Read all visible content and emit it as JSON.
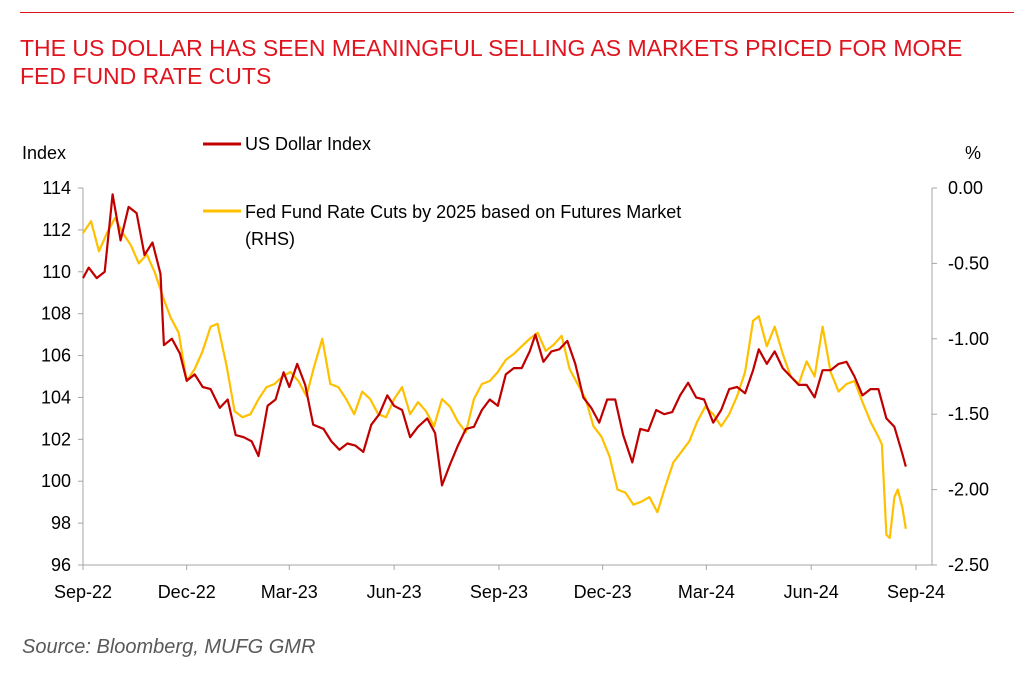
{
  "title": "THE US DOLLAR HAS SEEN MEANINGFUL SELLING AS MARKETS PRICED FOR MORE FED FUND RATE CUTS",
  "source": "Source: Bloomberg, MUFG GMR",
  "colors": {
    "accent": "#e0141e",
    "usd": "#c00000",
    "fed": "#ffc000",
    "axis": "#a6a6a6"
  },
  "chart_data": {
    "type": "line",
    "ylabel": "Index",
    "y2label": "%",
    "ylim": [
      96,
      114
    ],
    "y2lim": [
      -2.5,
      0
    ],
    "x_range": [
      "2022-09-01",
      "2024-09-15"
    ],
    "x_ticks": [
      {
        "date": "2022-09-01",
        "label": "Sep-22"
      },
      {
        "date": "2022-12-01",
        "label": "Dec-22"
      },
      {
        "date": "2023-03-01",
        "label": "Mar-23"
      },
      {
        "date": "2023-06-01",
        "label": "Jun-23"
      },
      {
        "date": "2023-09-01",
        "label": "Sep-23"
      },
      {
        "date": "2023-12-01",
        "label": "Dec-23"
      },
      {
        "date": "2024-03-01",
        "label": "Mar-24"
      },
      {
        "date": "2024-06-01",
        "label": "Jun-24"
      },
      {
        "date": "2024-09-01",
        "label": "Sep-24"
      }
    ],
    "y_ticks": [
      "96",
      "98",
      "100",
      "102",
      "104",
      "106",
      "108",
      "110",
      "112",
      "114"
    ],
    "y2_ticks": [
      "0.00",
      "-0.50",
      "-1.00",
      "-1.50",
      "-2.00",
      "-2.50"
    ],
    "grid": false,
    "legend_position": "top-left",
    "series": [
      {
        "name": "US Dollar Index",
        "axis": "left",
        "color": "#c00000",
        "points": [
          [
            "2022-09-01",
            109.7
          ],
          [
            "2022-09-06",
            110.2
          ],
          [
            "2022-09-13",
            109.7
          ],
          [
            "2022-09-20",
            110.0
          ],
          [
            "2022-09-27",
            113.7
          ],
          [
            "2022-10-04",
            111.5
          ],
          [
            "2022-10-11",
            113.1
          ],
          [
            "2022-10-18",
            112.8
          ],
          [
            "2022-10-25",
            110.8
          ],
          [
            "2022-11-01",
            111.4
          ],
          [
            "2022-11-08",
            109.9
          ],
          [
            "2022-11-11",
            106.5
          ],
          [
            "2022-11-18",
            106.8
          ],
          [
            "2022-11-25",
            106.1
          ],
          [
            "2022-12-01",
            104.8
          ],
          [
            "2022-12-08",
            105.1
          ],
          [
            "2022-12-15",
            104.5
          ],
          [
            "2022-12-22",
            104.4
          ],
          [
            "2022-12-30",
            103.5
          ],
          [
            "2023-01-06",
            103.9
          ],
          [
            "2023-01-13",
            102.2
          ],
          [
            "2023-01-20",
            102.1
          ],
          [
            "2023-01-27",
            101.9
          ],
          [
            "2023-02-02",
            101.2
          ],
          [
            "2023-02-10",
            103.6
          ],
          [
            "2023-02-17",
            103.9
          ],
          [
            "2023-02-24",
            105.2
          ],
          [
            "2023-03-01",
            104.5
          ],
          [
            "2023-03-08",
            105.6
          ],
          [
            "2023-03-15",
            104.6
          ],
          [
            "2023-03-22",
            102.7
          ],
          [
            "2023-03-31",
            102.5
          ],
          [
            "2023-04-07",
            101.9
          ],
          [
            "2023-04-14",
            101.5
          ],
          [
            "2023-04-21",
            101.8
          ],
          [
            "2023-04-28",
            101.7
          ],
          [
            "2023-05-05",
            101.4
          ],
          [
            "2023-05-12",
            102.7
          ],
          [
            "2023-05-19",
            103.2
          ],
          [
            "2023-05-26",
            104.1
          ],
          [
            "2023-06-01",
            103.6
          ],
          [
            "2023-06-08",
            103.4
          ],
          [
            "2023-06-15",
            102.1
          ],
          [
            "2023-06-22",
            102.6
          ],
          [
            "2023-06-30",
            103.0
          ],
          [
            "2023-07-07",
            102.3
          ],
          [
            "2023-07-13",
            99.8
          ],
          [
            "2023-07-20",
            100.8
          ],
          [
            "2023-07-27",
            101.7
          ],
          [
            "2023-08-03",
            102.5
          ],
          [
            "2023-08-10",
            102.6
          ],
          [
            "2023-08-17",
            103.4
          ],
          [
            "2023-08-24",
            103.9
          ],
          [
            "2023-08-31",
            103.6
          ],
          [
            "2023-09-07",
            105.1
          ],
          [
            "2023-09-14",
            105.4
          ],
          [
            "2023-09-21",
            105.4
          ],
          [
            "2023-09-28",
            106.2
          ],
          [
            "2023-10-03",
            107.0
          ],
          [
            "2023-10-10",
            105.7
          ],
          [
            "2023-10-17",
            106.2
          ],
          [
            "2023-10-24",
            106.3
          ],
          [
            "2023-10-31",
            106.7
          ],
          [
            "2023-11-07",
            105.6
          ],
          [
            "2023-11-14",
            104.0
          ],
          [
            "2023-11-21",
            103.5
          ],
          [
            "2023-11-28",
            102.8
          ],
          [
            "2023-12-05",
            103.9
          ],
          [
            "2023-12-12",
            103.9
          ],
          [
            "2023-12-19",
            102.2
          ],
          [
            "2023-12-27",
            100.9
          ],
          [
            "2024-01-03",
            102.5
          ],
          [
            "2024-01-10",
            102.4
          ],
          [
            "2024-01-17",
            103.4
          ],
          [
            "2024-01-24",
            103.2
          ],
          [
            "2024-01-31",
            103.3
          ],
          [
            "2024-02-07",
            104.1
          ],
          [
            "2024-02-14",
            104.7
          ],
          [
            "2024-02-21",
            104.0
          ],
          [
            "2024-02-28",
            103.9
          ],
          [
            "2024-03-07",
            102.8
          ],
          [
            "2024-03-14",
            103.4
          ],
          [
            "2024-03-21",
            104.4
          ],
          [
            "2024-03-28",
            104.5
          ],
          [
            "2024-04-04",
            104.2
          ],
          [
            "2024-04-11",
            105.3
          ],
          [
            "2024-04-16",
            106.3
          ],
          [
            "2024-04-23",
            105.6
          ],
          [
            "2024-04-30",
            106.2
          ],
          [
            "2024-05-07",
            105.4
          ],
          [
            "2024-05-14",
            105.0
          ],
          [
            "2024-05-21",
            104.6
          ],
          [
            "2024-05-28",
            104.6
          ],
          [
            "2024-06-04",
            104.0
          ],
          [
            "2024-06-11",
            105.3
          ],
          [
            "2024-06-18",
            105.3
          ],
          [
            "2024-06-25",
            105.6
          ],
          [
            "2024-07-02",
            105.7
          ],
          [
            "2024-07-09",
            105.0
          ],
          [
            "2024-07-16",
            104.1
          ],
          [
            "2024-07-23",
            104.4
          ],
          [
            "2024-07-30",
            104.4
          ],
          [
            "2024-08-06",
            103.0
          ],
          [
            "2024-08-13",
            102.6
          ],
          [
            "2024-08-20",
            101.3
          ],
          [
            "2024-08-23",
            100.7
          ]
        ]
      },
      {
        "name": "Fed Fund Rate Cuts by 2025 based on Futures Market (RHS)",
        "axis": "right",
        "color": "#ffc000",
        "points": [
          [
            "2022-09-01",
            -0.3
          ],
          [
            "2022-09-08",
            -0.22
          ],
          [
            "2022-09-15",
            -0.42
          ],
          [
            "2022-09-22",
            -0.3
          ],
          [
            "2022-09-29",
            -0.2
          ],
          [
            "2022-10-06",
            -0.3
          ],
          [
            "2022-10-13",
            -0.38
          ],
          [
            "2022-10-20",
            -0.5
          ],
          [
            "2022-10-27",
            -0.44
          ],
          [
            "2022-11-03",
            -0.56
          ],
          [
            "2022-11-10",
            -0.72
          ],
          [
            "2022-11-17",
            -0.86
          ],
          [
            "2022-11-24",
            -0.96
          ],
          [
            "2022-12-01",
            -1.28
          ],
          [
            "2022-12-08",
            -1.2
          ],
          [
            "2022-12-15",
            -1.08
          ],
          [
            "2022-12-22",
            -0.92
          ],
          [
            "2022-12-28",
            -0.9
          ],
          [
            "2023-01-05",
            -1.18
          ],
          [
            "2023-01-12",
            -1.48
          ],
          [
            "2023-01-19",
            -1.52
          ],
          [
            "2023-01-26",
            -1.5
          ],
          [
            "2023-02-02",
            -1.4
          ],
          [
            "2023-02-09",
            -1.32
          ],
          [
            "2023-02-16",
            -1.3
          ],
          [
            "2023-02-23",
            -1.25
          ],
          [
            "2023-03-02",
            -1.22
          ],
          [
            "2023-03-09",
            -1.28
          ],
          [
            "2023-03-16",
            -1.38
          ],
          [
            "2023-03-23",
            -1.18
          ],
          [
            "2023-03-30",
            -1.0
          ],
          [
            "2023-04-06",
            -1.3
          ],
          [
            "2023-04-13",
            -1.32
          ],
          [
            "2023-04-20",
            -1.4
          ],
          [
            "2023-04-27",
            -1.5
          ],
          [
            "2023-05-04",
            -1.35
          ],
          [
            "2023-05-11",
            -1.4
          ],
          [
            "2023-05-18",
            -1.5
          ],
          [
            "2023-05-25",
            -1.52
          ],
          [
            "2023-06-01",
            -1.4
          ],
          [
            "2023-06-08",
            -1.32
          ],
          [
            "2023-06-15",
            -1.5
          ],
          [
            "2023-06-22",
            -1.42
          ],
          [
            "2023-06-29",
            -1.48
          ],
          [
            "2023-07-06",
            -1.58
          ],
          [
            "2023-07-13",
            -1.4
          ],
          [
            "2023-07-20",
            -1.45
          ],
          [
            "2023-07-27",
            -1.55
          ],
          [
            "2023-08-03",
            -1.62
          ],
          [
            "2023-08-10",
            -1.4
          ],
          [
            "2023-08-17",
            -1.3
          ],
          [
            "2023-08-24",
            -1.28
          ],
          [
            "2023-08-31",
            -1.22
          ],
          [
            "2023-09-07",
            -1.14
          ],
          [
            "2023-09-14",
            -1.1
          ],
          [
            "2023-09-21",
            -1.05
          ],
          [
            "2023-09-28",
            -1.0
          ],
          [
            "2023-10-05",
            -0.96
          ],
          [
            "2023-10-12",
            -1.08
          ],
          [
            "2023-10-19",
            -1.04
          ],
          [
            "2023-10-26",
            -0.98
          ],
          [
            "2023-11-02",
            -1.2
          ],
          [
            "2023-11-09",
            -1.3
          ],
          [
            "2023-11-16",
            -1.4
          ],
          [
            "2023-11-23",
            -1.58
          ],
          [
            "2023-11-30",
            -1.65
          ],
          [
            "2023-12-07",
            -1.78
          ],
          [
            "2023-12-14",
            -2.0
          ],
          [
            "2023-12-21",
            -2.02
          ],
          [
            "2023-12-28",
            -2.1
          ],
          [
            "2024-01-04",
            -2.08
          ],
          [
            "2024-01-11",
            -2.05
          ],
          [
            "2024-01-18",
            -2.15
          ],
          [
            "2024-01-25",
            -1.98
          ],
          [
            "2024-02-01",
            -1.82
          ],
          [
            "2024-02-08",
            -1.75
          ],
          [
            "2024-02-15",
            -1.68
          ],
          [
            "2024-02-22",
            -1.55
          ],
          [
            "2024-02-29",
            -1.45
          ],
          [
            "2024-03-07",
            -1.5
          ],
          [
            "2024-03-14",
            -1.58
          ],
          [
            "2024-03-21",
            -1.5
          ],
          [
            "2024-03-28",
            -1.38
          ],
          [
            "2024-04-04",
            -1.22
          ],
          [
            "2024-04-11",
            -0.88
          ],
          [
            "2024-04-16",
            -0.85
          ],
          [
            "2024-04-23",
            -1.05
          ],
          [
            "2024-04-30",
            -0.92
          ],
          [
            "2024-05-07",
            -1.1
          ],
          [
            "2024-05-14",
            -1.25
          ],
          [
            "2024-05-21",
            -1.3
          ],
          [
            "2024-05-28",
            -1.15
          ],
          [
            "2024-06-04",
            -1.25
          ],
          [
            "2024-06-11",
            -0.92
          ],
          [
            "2024-06-18",
            -1.22
          ],
          [
            "2024-06-25",
            -1.35
          ],
          [
            "2024-07-02",
            -1.3
          ],
          [
            "2024-07-09",
            -1.28
          ],
          [
            "2024-07-16",
            -1.42
          ],
          [
            "2024-07-23",
            -1.55
          ],
          [
            "2024-07-30",
            -1.65
          ],
          [
            "2024-08-02",
            -1.7
          ],
          [
            "2024-08-06",
            -2.3
          ],
          [
            "2024-08-09",
            -2.32
          ],
          [
            "2024-08-13",
            -2.05
          ],
          [
            "2024-08-16",
            -2.0
          ],
          [
            "2024-08-20",
            -2.12
          ],
          [
            "2024-08-23",
            -2.26
          ]
        ]
      }
    ]
  }
}
